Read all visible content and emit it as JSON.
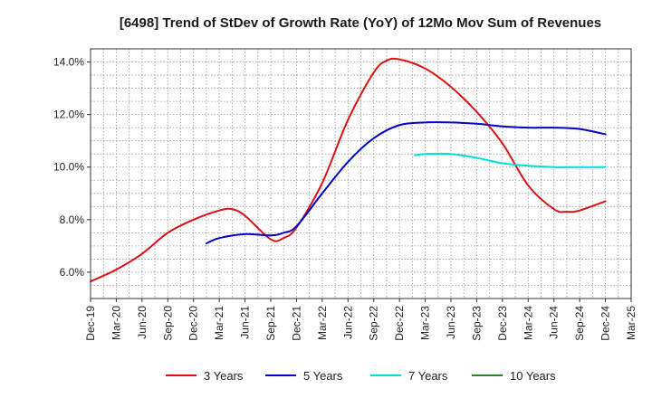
{
  "chart_data": {
    "type": "line",
    "title": "[6498]  Trend of StDev of Growth Rate (YoY) of 12Mo Mov Sum of Revenues",
    "xlabel": "",
    "ylabel": "",
    "x_ticks": [
      "Dec-19",
      "Mar-20",
      "Jun-20",
      "Sep-20",
      "Dec-20",
      "Mar-21",
      "Jun-21",
      "Sep-21",
      "Dec-21",
      "Mar-22",
      "Jun-22",
      "Sep-22",
      "Dec-22",
      "Mar-23",
      "Jun-23",
      "Sep-23",
      "Dec-23",
      "Mar-24",
      "Jun-24",
      "Sep-24",
      "Dec-24",
      "Mar-25"
    ],
    "y_ticks": [
      "6.0%",
      "8.0%",
      "10.0%",
      "12.0%",
      "14.0%"
    ],
    "y_tick_values": [
      6,
      8,
      10,
      12,
      14
    ],
    "ylim": [
      5.0,
      14.5
    ],
    "grid": true,
    "legend_position": "bottom",
    "series": [
      {
        "name": "3 Years",
        "color": "#dd1111",
        "points": [
          [
            0,
            5.65
          ],
          [
            1,
            6.1
          ],
          [
            2,
            6.7
          ],
          [
            3,
            7.5
          ],
          [
            4,
            8.0
          ],
          [
            5,
            8.35
          ],
          [
            5.5,
            8.4
          ],
          [
            6,
            8.15
          ],
          [
            7,
            7.25
          ],
          [
            7.5,
            7.3
          ],
          [
            8,
            7.7
          ],
          [
            9,
            9.4
          ],
          [
            10,
            11.8
          ],
          [
            11,
            13.6
          ],
          [
            11.5,
            14.05
          ],
          [
            12,
            14.1
          ],
          [
            13,
            13.75
          ],
          [
            14,
            13.05
          ],
          [
            15,
            12.1
          ],
          [
            16,
            10.9
          ],
          [
            17,
            9.3
          ],
          [
            18,
            8.4
          ],
          [
            18.5,
            8.3
          ],
          [
            19,
            8.35
          ],
          [
            20,
            8.7
          ]
        ]
      },
      {
        "name": "5 Years",
        "color": "#0000cc",
        "points": [
          [
            4.5,
            7.1
          ],
          [
            5,
            7.3
          ],
          [
            6,
            7.45
          ],
          [
            7,
            7.4
          ],
          [
            7.5,
            7.5
          ],
          [
            8,
            7.75
          ],
          [
            9,
            9.0
          ],
          [
            10,
            10.2
          ],
          [
            11,
            11.1
          ],
          [
            12,
            11.6
          ],
          [
            13,
            11.7
          ],
          [
            14,
            11.7
          ],
          [
            15,
            11.65
          ],
          [
            16,
            11.55
          ],
          [
            17,
            11.5
          ],
          [
            18,
            11.5
          ],
          [
            19,
            11.45
          ],
          [
            20,
            11.25
          ]
        ]
      },
      {
        "name": "7 Years",
        "color": "#00dddd",
        "points": [
          [
            12.6,
            10.45
          ],
          [
            13,
            10.5
          ],
          [
            14,
            10.5
          ],
          [
            15,
            10.35
          ],
          [
            16,
            10.15
          ],
          [
            17,
            10.05
          ],
          [
            18,
            10.0
          ],
          [
            19,
            10.0
          ],
          [
            20,
            10.0
          ]
        ]
      },
      {
        "name": "10 Years",
        "color": "#228822",
        "points": []
      }
    ]
  }
}
